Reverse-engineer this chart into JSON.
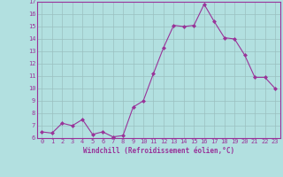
{
  "x": [
    0,
    1,
    2,
    3,
    4,
    5,
    6,
    7,
    8,
    9,
    10,
    11,
    12,
    13,
    14,
    15,
    16,
    17,
    18,
    19,
    20,
    21,
    22,
    23
  ],
  "y": [
    6.5,
    6.4,
    7.2,
    7.0,
    7.5,
    6.3,
    6.5,
    6.1,
    6.2,
    8.5,
    9.0,
    11.2,
    13.3,
    15.1,
    15.0,
    15.1,
    16.8,
    15.4,
    14.1,
    14.0,
    12.7,
    10.9,
    10.9,
    10.0
  ],
  "xlabel": "Windchill (Refroidissement éolien,°C)",
  "ylim": [
    6,
    17
  ],
  "xlim": [
    -0.5,
    23.5
  ],
  "yticks": [
    6,
    7,
    8,
    9,
    10,
    11,
    12,
    13,
    14,
    15,
    16,
    17
  ],
  "xticks": [
    0,
    1,
    2,
    3,
    4,
    5,
    6,
    7,
    8,
    9,
    10,
    11,
    12,
    13,
    14,
    15,
    16,
    17,
    18,
    19,
    20,
    21,
    22,
    23
  ],
  "line_color": "#993399",
  "marker": "D",
  "marker_size": 2,
  "bg_color": "#b2e0e0",
  "grid_color": "#9abfbf",
  "tick_label_color": "#993399",
  "axis_label_color": "#993399",
  "axis_line_color": "#993399"
}
